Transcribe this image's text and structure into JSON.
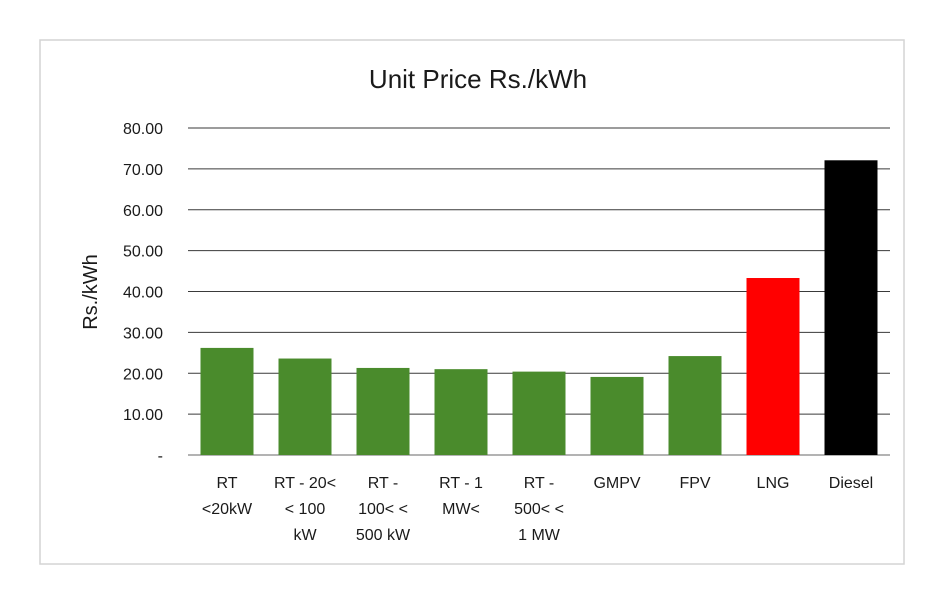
{
  "chart_data": {
    "type": "bar",
    "title": "Unit Price Rs./kWh",
    "ylabel": "Rs./kWh",
    "xlabel": "",
    "ylim": [
      0,
      80
    ],
    "y_ticks": [
      {
        "value": 0,
        "label": "-"
      },
      {
        "value": 10,
        "label": "10.00"
      },
      {
        "value": 20,
        "label": "20.00"
      },
      {
        "value": 30,
        "label": "30.00"
      },
      {
        "value": 40,
        "label": "40.00"
      },
      {
        "value": 50,
        "label": "50.00"
      },
      {
        "value": 60,
        "label": "60.00"
      },
      {
        "value": 70,
        "label": "70.00"
      },
      {
        "value": 80,
        "label": "80.00"
      }
    ],
    "grid": true,
    "legend": "none",
    "categories": [
      [
        "RT",
        "<20kW"
      ],
      [
        "RT - 20<",
        "< 100",
        "kW"
      ],
      [
        "RT -",
        "100< <",
        "500 kW"
      ],
      [
        "RT - 1",
        "MW<"
      ],
      [
        "RT -",
        "500< <",
        "1 MW"
      ],
      [
        "GMPV"
      ],
      [
        "FPV"
      ],
      [
        "LNG"
      ],
      [
        "Diesel"
      ]
    ],
    "values": [
      26.2,
      23.6,
      21.3,
      21.0,
      20.4,
      19.1,
      24.2,
      43.3,
      72.1
    ],
    "colors": [
      "#4a8b2c",
      "#4a8b2c",
      "#4a8b2c",
      "#4a8b2c",
      "#4a8b2c",
      "#4a8b2c",
      "#4a8b2c",
      "#ff0000",
      "#000000"
    ]
  }
}
